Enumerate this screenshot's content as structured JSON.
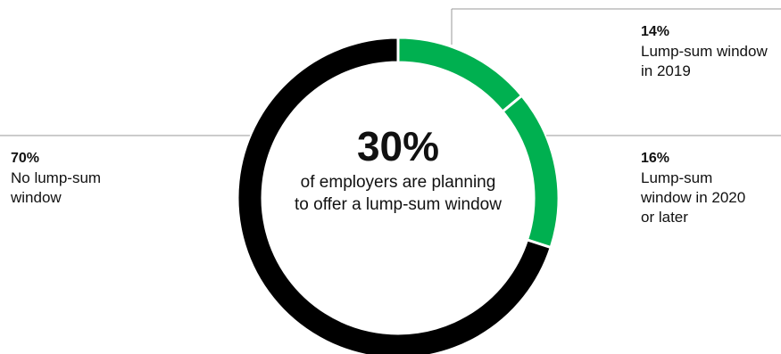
{
  "chart_data": {
    "type": "pie",
    "variant": "donut",
    "center": {
      "value": "30%",
      "text": "of employers are planning to offer a lump-sum window"
    },
    "slices": [
      {
        "label": "Lump-sum window in 2019",
        "value": 14,
        "display": "14%",
        "color": "#00b050"
      },
      {
        "label": "Lump-sum window in 2020 or later",
        "value": 16,
        "display": "16%",
        "color": "#00b050"
      },
      {
        "label": "No lump-sum window",
        "value": 70,
        "display": "70%",
        "color": "#000000"
      }
    ]
  }
}
